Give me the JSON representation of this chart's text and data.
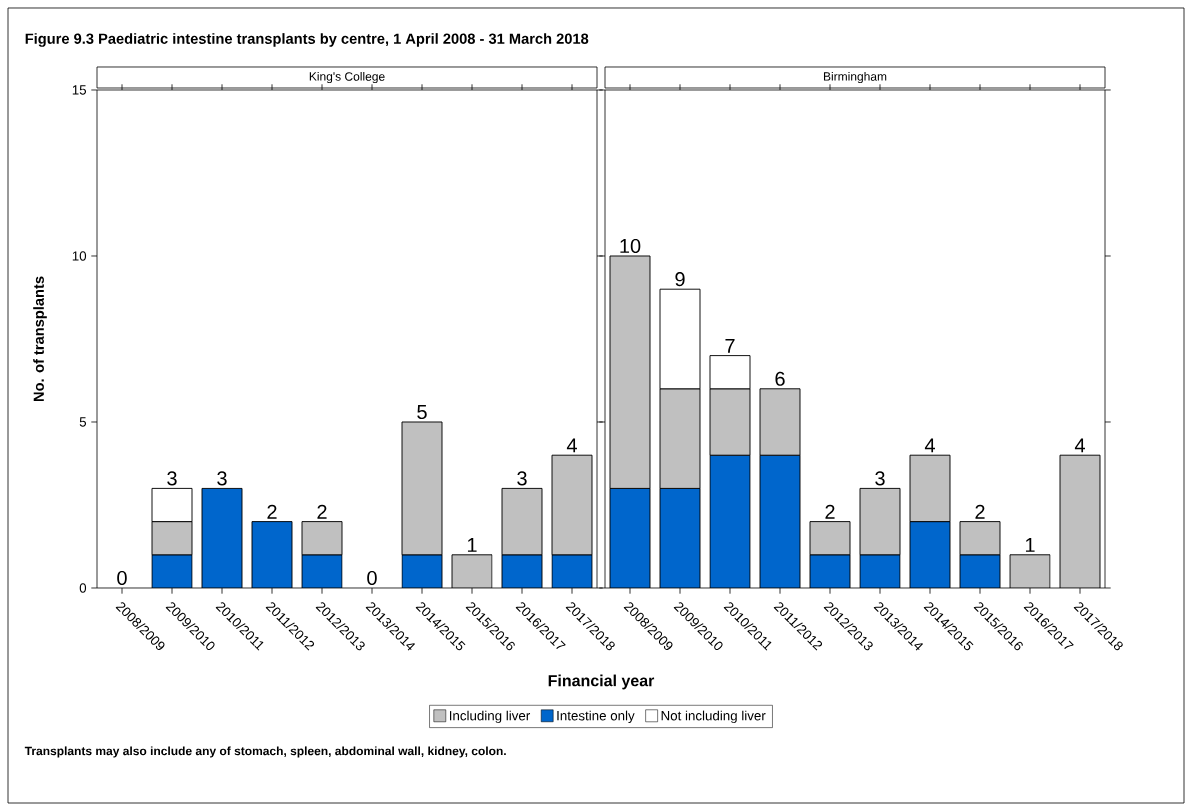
{
  "chart_data": [
    {
      "type": "bar",
      "title": "Figure 9.3 Paediatric intestine transplants by centre, 1 April 2008 - 31 March 2018",
      "subtitle": "King's College",
      "xlabel": "Financial year",
      "ylabel": "No. of transplants",
      "categories": [
        "2008/2009",
        "2009/2010",
        "2010/2011",
        "2011/2012",
        "2012/2013",
        "2013/2014",
        "2014/2015",
        "2015/2016",
        "2016/2017",
        "2017/2018"
      ],
      "series": [
        {
          "name": "Intestine only",
          "color": "#0066cc",
          "values": [
            0,
            1,
            3,
            2,
            1,
            0,
            1,
            0,
            1,
            1
          ]
        },
        {
          "name": "Including liver",
          "color": "#c0c0c0",
          "values": [
            0,
            1,
            0,
            0,
            1,
            0,
            4,
            1,
            2,
            3
          ]
        },
        {
          "name": "Not including liver",
          "color": "#ffffff",
          "values": [
            0,
            1,
            0,
            0,
            0,
            0,
            0,
            0,
            0,
            0
          ]
        }
      ],
      "stacked": true,
      "totals": [
        "0",
        "3",
        "3",
        "2",
        "2",
        "0",
        "5",
        "1",
        "3",
        "4"
      ],
      "ylim": [
        0,
        15
      ],
      "yticks": [
        0,
        5,
        10,
        15
      ],
      "legend": "bottom",
      "annotations": [
        "Transplants may also include any of stomach, spleen, abdominal wall, kidney, colon."
      ]
    },
    {
      "type": "bar",
      "subtitle": "Birmingham",
      "categories": [
        "2008/2009",
        "2009/2010",
        "2010/2011",
        "2011/2012",
        "2012/2013",
        "2013/2014",
        "2014/2015",
        "2015/2016",
        "2016/2017",
        "2017/2018"
      ],
      "series": [
        {
          "color": "#0066cc",
          "values": [
            3,
            3,
            4,
            4,
            1,
            1,
            2,
            1,
            0,
            0
          ]
        },
        {
          "color": "#c0c0c0",
          "values": [
            7,
            3,
            2,
            2,
            1,
            2,
            2,
            1,
            1,
            4
          ]
        },
        {
          "color": "#ffffff",
          "values": [
            0,
            3,
            1,
            0,
            0,
            0,
            0,
            0,
            0,
            0
          ]
        }
      ],
      "stacked": true,
      "totals": [
        "10",
        "9",
        "7",
        "6",
        "2",
        "3",
        "4",
        "2",
        "1",
        "4"
      ],
      "ylim": [
        0,
        15
      ],
      "yticks": [
        0,
        5,
        10,
        15
      ],
      "tick_labels": "x"
    }
  ]
}
